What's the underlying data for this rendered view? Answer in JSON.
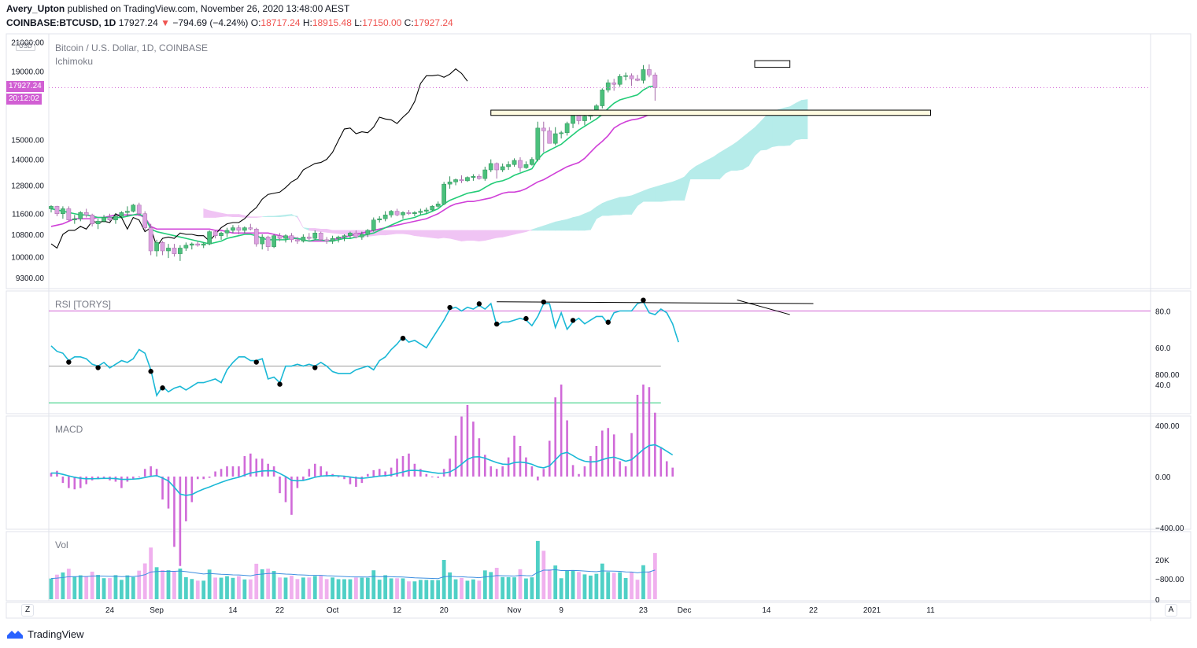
{
  "header": {
    "user": "Avery_Upton",
    "published": "published on TradingView.com, November 26, 2020 13:48:00 AEST",
    "symbol": "COINBASE:BTCUSD, 1D",
    "last": "17927.24",
    "change_arrow": "▼",
    "change": "−794.69 (−4.24%)",
    "o_label": "O:",
    "o": "18717.24",
    "h_label": "H:",
    "h": "18915.48",
    "l_label": "L:",
    "l": "17150.00",
    "c_label": "C:",
    "c": "17927.24"
  },
  "pane_labels": {
    "main": "Bitcoin / U.S. Dollar, 1D, COINBASE",
    "ichimoku": "Ichimoku",
    "rsi": "RSI [TORYS]",
    "macd": "MACD",
    "vol": "Vol"
  },
  "price_axis": {
    "currency": "USD",
    "ticks": [
      "21000.00",
      "19000.00",
      "15000.00",
      "14000.00",
      "12800.00",
      "11600.00",
      "10800.00",
      "10000.00",
      "9300.00"
    ],
    "last_price_badge": "17927.24",
    "countdown_badge": "20:12:02"
  },
  "rsi_axis": [
    "80.0",
    "60.0",
    "40.0"
  ],
  "macd_axis": [
    "800.00",
    "400.00",
    "0.00",
    "−400.00",
    "−800.00"
  ],
  "vol_axis": [
    "20K",
    "0"
  ],
  "time_axis": [
    "24",
    "Sep",
    "14",
    "22",
    "Oct",
    "12",
    "20",
    "Nov",
    "9",
    "23",
    "Dec",
    "14",
    "22",
    "2021",
    "11"
  ],
  "corner_left": "Z",
  "corner_right": "A",
  "footer": {
    "brand": "TradingView"
  },
  "colors": {
    "up": "#4bc07c",
    "down": "#dba1e0",
    "tenkan": "#22cc77",
    "kijun": "#d040d8",
    "chikou": "#000000",
    "kumo_bull": "#b6ecea",
    "kumo_bear": "#f0c4f4",
    "rsi": "#1ab8d6",
    "macd_hist": "#d06ad8",
    "vol_up": "#4fd0c6",
    "vol_down": "#f0b0ee",
    "vol_ma": "#3d8ee0",
    "zone_fill": "#fffbe0"
  },
  "chart_data": {
    "type": "candlestick",
    "x": [
      "2020-08-14",
      "2020-11-26"
    ],
    "ylim": [
      9000,
      21500
    ],
    "rsi_ylim": [
      25,
      90
    ],
    "rsi_levels": [
      80,
      50,
      30
    ],
    "macd_ylim": [
      -950,
      950
    ],
    "vol_ylim": [
      0,
      32000
    ],
    "zone": [
      16600,
      16300
    ],
    "chikou": [
      10450,
      10300,
      10800,
      10950,
      10950,
      11100,
      11000,
      11300,
      11250,
      11300,
      11250,
      11600,
      11450,
      11000,
      11450,
      11350,
      10900,
      11050,
      10350,
      10650,
      10700,
      10650,
      10850,
      10800,
      10800,
      10750,
      10750,
      10550,
      10800,
      11050,
      11200,
      11250,
      11250,
      11400,
      11650,
      11850,
      12200,
      12400,
      12450,
      12500,
      12700,
      12950,
      13100,
      13500,
      13650,
      13800,
      13850,
      14000,
      14350,
      14950,
      15550,
      15600,
      15300,
      15400,
      15350,
      15650,
      16200,
      16100,
      16050,
      15850,
      16200,
      16500,
      17100,
      18200,
      18700,
      18700,
      18750,
      18600,
      18800,
      19150,
      18850,
      18350
    ],
    "candles": [
      [
        11800,
        11950,
        11650,
        11900
      ],
      [
        11900,
        11920,
        11500,
        11600
      ],
      [
        11600,
        11900,
        11400,
        11800
      ],
      [
        11800,
        11900,
        11300,
        11350
      ],
      [
        11350,
        11550,
        11200,
        11400
      ],
      [
        11400,
        11700,
        11300,
        11650
      ],
      [
        11650,
        11800,
        11450,
        11550
      ],
      [
        11550,
        11600,
        11100,
        11200
      ],
      [
        11200,
        11400,
        11000,
        11300
      ],
      [
        11300,
        11550,
        11250,
        11450
      ],
      [
        11450,
        11600,
        11300,
        11350
      ],
      [
        11350,
        11600,
        11200,
        11500
      ],
      [
        11500,
        11700,
        11450,
        11650
      ],
      [
        11650,
        11900,
        11500,
        11700
      ],
      [
        11700,
        12000,
        11650,
        11950
      ],
      [
        11950,
        12050,
        11500,
        11600
      ],
      [
        11600,
        11700,
        10950,
        11050
      ],
      [
        11050,
        11200,
        10050,
        10200
      ],
      [
        10200,
        10600,
        10000,
        10500
      ],
      [
        10500,
        10550,
        10050,
        10200
      ],
      [
        10200,
        10450,
        9950,
        10300
      ],
      [
        10300,
        10450,
        10000,
        10100
      ],
      [
        10100,
        10400,
        9850,
        10300
      ],
      [
        10300,
        10500,
        10200,
        10400
      ],
      [
        10400,
        10500,
        10250,
        10450
      ],
      [
        10450,
        10550,
        10350,
        10400
      ],
      [
        10400,
        10500,
        10300,
        10450
      ],
      [
        10450,
        10950,
        10400,
        10900
      ],
      [
        10900,
        10950,
        10650,
        10750
      ],
      [
        10750,
        10900,
        10600,
        10850
      ],
      [
        10850,
        11050,
        10700,
        10950
      ],
      [
        10950,
        11150,
        10850,
        11050
      ],
      [
        11050,
        11150,
        10800,
        10950
      ],
      [
        10950,
        11100,
        10850,
        11050
      ],
      [
        11050,
        11200,
        10950,
        11000
      ],
      [
        11000,
        11050,
        10350,
        10450
      ],
      [
        10450,
        10800,
        10250,
        10700
      ],
      [
        10700,
        10750,
        10200,
        10350
      ],
      [
        10350,
        10800,
        10300,
        10750
      ],
      [
        10750,
        10850,
        10550,
        10650
      ],
      [
        10650,
        10800,
        10500,
        10750
      ],
      [
        10750,
        10850,
        10500,
        10600
      ],
      [
        10600,
        10700,
        10450,
        10550
      ],
      [
        10550,
        10800,
        10500,
        10700
      ],
      [
        10700,
        10850,
        10550,
        10650
      ],
      [
        10650,
        10950,
        10600,
        10850
      ],
      [
        10850,
        10900,
        10550,
        10600
      ],
      [
        10600,
        10700,
        10450,
        10550
      ],
      [
        10550,
        10750,
        10450,
        10650
      ],
      [
        10650,
        10750,
        10500,
        10700
      ],
      [
        10700,
        10800,
        10550,
        10750
      ],
      [
        10750,
        10900,
        10650,
        10850
      ],
      [
        10850,
        10950,
        10650,
        10700
      ],
      [
        10700,
        10900,
        10600,
        10800
      ],
      [
        10800,
        11000,
        10700,
        10950
      ],
      [
        10950,
        11450,
        10900,
        11350
      ],
      [
        11350,
        11500,
        11250,
        11400
      ],
      [
        11400,
        11700,
        11300,
        11550
      ],
      [
        11550,
        11750,
        11450,
        11700
      ],
      [
        11700,
        11800,
        11500,
        11550
      ],
      [
        11550,
        11700,
        11400,
        11650
      ],
      [
        11650,
        11750,
        11550,
        11600
      ],
      [
        11600,
        11700,
        11500,
        11650
      ],
      [
        11650,
        11800,
        11550,
        11700
      ],
      [
        11700,
        11850,
        11600,
        11750
      ],
      [
        11750,
        11950,
        11700,
        11900
      ],
      [
        11900,
        12100,
        11850,
        12000
      ],
      [
        12000,
        12950,
        11950,
        12850
      ],
      [
        12850,
        13200,
        12650,
        12950
      ],
      [
        12950,
        13100,
        12800,
        13050
      ],
      [
        13050,
        13250,
        12900,
        13000
      ],
      [
        13000,
        13200,
        12950,
        13150
      ],
      [
        13150,
        13300,
        13000,
        13200
      ],
      [
        13200,
        13300,
        13050,
        13100
      ],
      [
        13100,
        13650,
        13000,
        13500
      ],
      [
        13500,
        14000,
        13400,
        13800
      ],
      [
        13800,
        13850,
        13100,
        13500
      ],
      [
        13500,
        13800,
        13400,
        13650
      ],
      [
        13650,
        13900,
        13500,
        13750
      ],
      [
        13750,
        14050,
        13650,
        13950
      ],
      [
        13950,
        14100,
        13400,
        13600
      ],
      [
        13600,
        13900,
        13550,
        13750
      ],
      [
        13750,
        14100,
        13700,
        14000
      ],
      [
        14000,
        15950,
        13900,
        15600
      ],
      [
        15600,
        15950,
        14350,
        15450
      ],
      [
        15450,
        15650,
        14900,
        14800
      ],
      [
        14800,
        15650,
        14700,
        15300
      ],
      [
        15300,
        15450,
        15050,
        15350
      ],
      [
        15350,
        15950,
        15200,
        15850
      ],
      [
        15850,
        16400,
        15600,
        16300
      ],
      [
        16300,
        16500,
        15800,
        16000
      ],
      [
        16000,
        16350,
        15750,
        16250
      ],
      [
        16250,
        16600,
        16050,
        16400
      ],
      [
        16400,
        16950,
        16300,
        16850
      ],
      [
        16850,
        17900,
        16700,
        17800
      ],
      [
        17800,
        18450,
        17650,
        18250
      ],
      [
        18250,
        18500,
        17750,
        18150
      ],
      [
        18150,
        18800,
        18000,
        18650
      ],
      [
        18650,
        18900,
        18400,
        18700
      ],
      [
        18700,
        18850,
        18050,
        18500
      ],
      [
        18500,
        18750,
        18350,
        18400
      ],
      [
        18400,
        19400,
        18200,
        19100
      ],
      [
        19100,
        19450,
        18600,
        18750
      ],
      [
        18750,
        18900,
        17150,
        17950
      ]
    ],
    "tenkan": [
      11800,
      11750,
      11700,
      11650,
      11600,
      11550,
      11550,
      11500,
      11450,
      11450,
      11450,
      11450,
      11450,
      11500,
      11550,
      11600,
      11450,
      11000,
      10900,
      10850,
      10800,
      10750,
      10700,
      10650,
      10600,
      10550,
      10500,
      10450,
      10500,
      10550,
      10650,
      10700,
      10750,
      10800,
      10800,
      10750,
      10650,
      10600,
      10600,
      10600,
      10600,
      10650,
      10650,
      10600,
      10550,
      10600,
      10600,
      10550,
      10550,
      10600,
      10650,
      10650,
      10700,
      10750,
      10800,
      10850,
      10950,
      11050,
      11150,
      11250,
      11350,
      11400,
      11450,
      11550,
      11600,
      11700,
      11800,
      12000,
      12150,
      12250,
      12350,
      12450,
      12500,
      12550,
      12700,
      12850,
      12950,
      13000,
      13100,
      13250,
      13350,
      13450,
      13550,
      14000,
      14300,
      14450,
      14600,
      14750,
      15000,
      15250,
      15500,
      15700,
      15900,
      16100,
      16350,
      16700,
      17000,
      17200,
      17300,
      17400,
      17500,
      17800,
      18000,
      18050
    ],
    "kijun": [
      11100,
      11150,
      11200,
      11300,
      11400,
      11400,
      11400,
      11400,
      11450,
      11450,
      11500,
      11550,
      11550,
      11550,
      11550,
      11550,
      11450,
      11100,
      11000,
      11000,
      11000,
      11000,
      11000,
      11000,
      11000,
      11000,
      11000,
      11000,
      10950,
      10950,
      10900,
      10850,
      10850,
      10850,
      10850,
      10850,
      10850,
      10850,
      10800,
      10750,
      10700,
      10700,
      10650,
      10600,
      10550,
      10550,
      10550,
      10550,
      10600,
      10650,
      10700,
      10750,
      10800,
      10850,
      10900,
      10950,
      11000,
      11050,
      11100,
      11150,
      11200,
      11250,
      11300,
      11350,
      11400,
      11500,
      11600,
      11750,
      11900,
      12000,
      12050,
      12100,
      12100,
      12150,
      12200,
      12250,
      12350,
      12450,
      12500,
      12500,
      12550,
      12650,
      12800,
      12950,
      13050,
      13200,
      13350,
      13500,
      13650,
      13750,
      13850,
      14050,
      14350,
      14650,
      14900,
      15200,
      15600,
      15800,
      15950,
      16050,
      16100,
      16200,
      16350,
      16400
    ],
    "rsi": [
      61,
      58,
      57,
      53,
      55,
      55,
      54,
      51,
      50,
      52,
      49,
      51,
      53,
      52,
      54,
      59,
      57,
      48,
      34,
      39,
      36,
      38,
      39,
      37,
      39,
      41,
      41,
      42,
      43,
      41,
      48,
      52,
      55,
      55,
      53,
      53,
      54,
      43,
      44,
      41,
      50,
      50,
      51,
      50,
      51,
      50,
      52,
      50,
      47,
      46,
      46,
      46,
      48,
      49,
      50,
      48,
      53,
      55,
      59,
      62,
      66,
      63,
      64,
      62,
      60,
      65,
      70,
      75,
      81,
      82,
      80,
      82,
      81,
      83,
      81,
      84,
      72,
      74,
      74,
      75,
      76,
      75,
      72,
      77,
      84,
      84,
      71,
      79,
      70,
      74,
      76,
      73,
      75,
      77,
      77,
      73,
      79,
      80,
      80,
      80,
      84,
      85,
      79,
      78,
      81,
      79,
      73,
      63
    ],
    "macd_hist": [
      30,
      45,
      -50,
      -90,
      -100,
      -90,
      -60,
      -30,
      -20,
      -10,
      -30,
      -40,
      -90,
      -40,
      -20,
      0,
      60,
      80,
      60,
      -180,
      -250,
      -550,
      -700,
      -350,
      -200,
      -20,
      -20,
      -10,
      40,
      60,
      80,
      80,
      80,
      160,
      180,
      140,
      140,
      100,
      80,
      -130,
      -200,
      -300,
      -90,
      -30,
      60,
      100,
      80,
      40,
      20,
      0,
      -20,
      -60,
      -80,
      -50,
      20,
      50,
      60,
      40,
      70,
      140,
      160,
      180,
      100,
      60,
      20,
      0,
      -10,
      60,
      140,
      320,
      470,
      560,
      430,
      300,
      170,
      80,
      60,
      80,
      150,
      320,
      240,
      150,
      80,
      -30,
      60,
      280,
      620,
      720,
      440,
      90,
      20,
      80,
      160,
      240,
      360,
      380,
      330,
      120,
      80,
      340,
      640,
      720,
      700,
      500,
      230,
      120,
      70
    ]
  }
}
